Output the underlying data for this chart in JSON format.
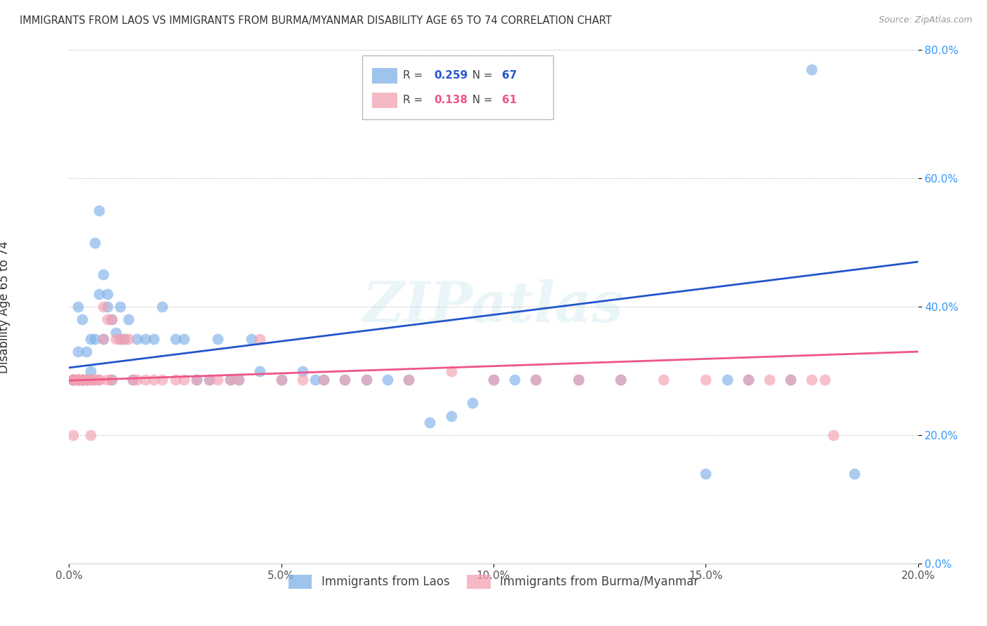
{
  "title": "IMMIGRANTS FROM LAOS VS IMMIGRANTS FROM BURMA/MYANMAR DISABILITY AGE 65 TO 74 CORRELATION CHART",
  "source": "Source: ZipAtlas.com",
  "ylabel": "Disability Age 65 to 74",
  "legend_label1": "Immigrants from Laos",
  "legend_label2": "Immigrants from Burma/Myanmar",
  "r1": 0.259,
  "n1": 67,
  "r2": 0.138,
  "n2": 61,
  "xlim": [
    0.0,
    0.2
  ],
  "ylim": [
    0.0,
    0.8
  ],
  "xticks": [
    0.0,
    0.05,
    0.1,
    0.15,
    0.2
  ],
  "yticks": [
    0.0,
    0.2,
    0.4,
    0.6,
    0.8
  ],
  "color_blue": "#7EB1E8",
  "color_pink": "#F4A0B0",
  "color_blue_line": "#2255CC",
  "color_pink_line": "#EE5588",
  "background": "#FFFFFF",
  "watermark": "ZIPatlas",
  "blue_x": [
    0.001,
    0.001,
    0.001,
    0.002,
    0.002,
    0.002,
    0.002,
    0.003,
    0.003,
    0.003,
    0.004,
    0.004,
    0.004,
    0.005,
    0.005,
    0.005,
    0.006,
    0.006,
    0.007,
    0.007,
    0.008,
    0.008,
    0.009,
    0.009,
    0.01,
    0.01,
    0.011,
    0.012,
    0.012,
    0.013,
    0.014,
    0.015,
    0.016,
    0.018,
    0.02,
    0.022,
    0.025,
    0.027,
    0.03,
    0.033,
    0.035,
    0.038,
    0.04,
    0.043,
    0.045,
    0.05,
    0.055,
    0.058,
    0.06,
    0.065,
    0.07,
    0.075,
    0.08,
    0.085,
    0.09,
    0.095,
    0.1,
    0.105,
    0.11,
    0.12,
    0.13,
    0.15,
    0.155,
    0.16,
    0.17,
    0.175,
    0.185
  ],
  "blue_y": [
    0.286,
    0.286,
    0.286,
    0.286,
    0.286,
    0.33,
    0.4,
    0.286,
    0.38,
    0.286,
    0.286,
    0.286,
    0.33,
    0.35,
    0.286,
    0.3,
    0.5,
    0.35,
    0.55,
    0.42,
    0.45,
    0.35,
    0.4,
    0.42,
    0.286,
    0.38,
    0.36,
    0.4,
    0.35,
    0.35,
    0.38,
    0.286,
    0.35,
    0.35,
    0.35,
    0.4,
    0.35,
    0.35,
    0.286,
    0.286,
    0.35,
    0.286,
    0.286,
    0.35,
    0.3,
    0.286,
    0.3,
    0.286,
    0.286,
    0.286,
    0.286,
    0.286,
    0.286,
    0.22,
    0.23,
    0.25,
    0.286,
    0.286,
    0.286,
    0.286,
    0.286,
    0.14,
    0.286,
    0.286,
    0.286,
    0.77,
    0.14
  ],
  "pink_x": [
    0.001,
    0.001,
    0.001,
    0.001,
    0.002,
    0.002,
    0.002,
    0.003,
    0.003,
    0.003,
    0.004,
    0.004,
    0.005,
    0.005,
    0.005,
    0.006,
    0.006,
    0.007,
    0.007,
    0.008,
    0.008,
    0.009,
    0.009,
    0.01,
    0.01,
    0.011,
    0.012,
    0.013,
    0.014,
    0.015,
    0.016,
    0.018,
    0.02,
    0.022,
    0.025,
    0.027,
    0.03,
    0.033,
    0.035,
    0.038,
    0.04,
    0.045,
    0.05,
    0.055,
    0.06,
    0.065,
    0.07,
    0.08,
    0.09,
    0.1,
    0.11,
    0.12,
    0.13,
    0.14,
    0.15,
    0.16,
    0.165,
    0.17,
    0.175,
    0.178,
    0.18
  ],
  "pink_y": [
    0.286,
    0.286,
    0.2,
    0.286,
    0.286,
    0.286,
    0.286,
    0.286,
    0.286,
    0.286,
    0.286,
    0.286,
    0.286,
    0.286,
    0.2,
    0.286,
    0.286,
    0.286,
    0.286,
    0.35,
    0.4,
    0.38,
    0.286,
    0.286,
    0.38,
    0.35,
    0.35,
    0.35,
    0.35,
    0.286,
    0.286,
    0.286,
    0.286,
    0.286,
    0.286,
    0.286,
    0.286,
    0.286,
    0.286,
    0.286,
    0.286,
    0.35,
    0.286,
    0.286,
    0.286,
    0.286,
    0.286,
    0.286,
    0.3,
    0.286,
    0.286,
    0.286,
    0.286,
    0.286,
    0.286,
    0.286,
    0.286,
    0.286,
    0.286,
    0.286,
    0.2
  ],
  "blue_line_x0": 0.0,
  "blue_line_y0": 0.305,
  "blue_line_x1": 0.2,
  "blue_line_y1": 0.47,
  "pink_line_x0": 0.0,
  "pink_line_y0": 0.285,
  "pink_line_x1": 0.2,
  "pink_line_y1": 0.33
}
